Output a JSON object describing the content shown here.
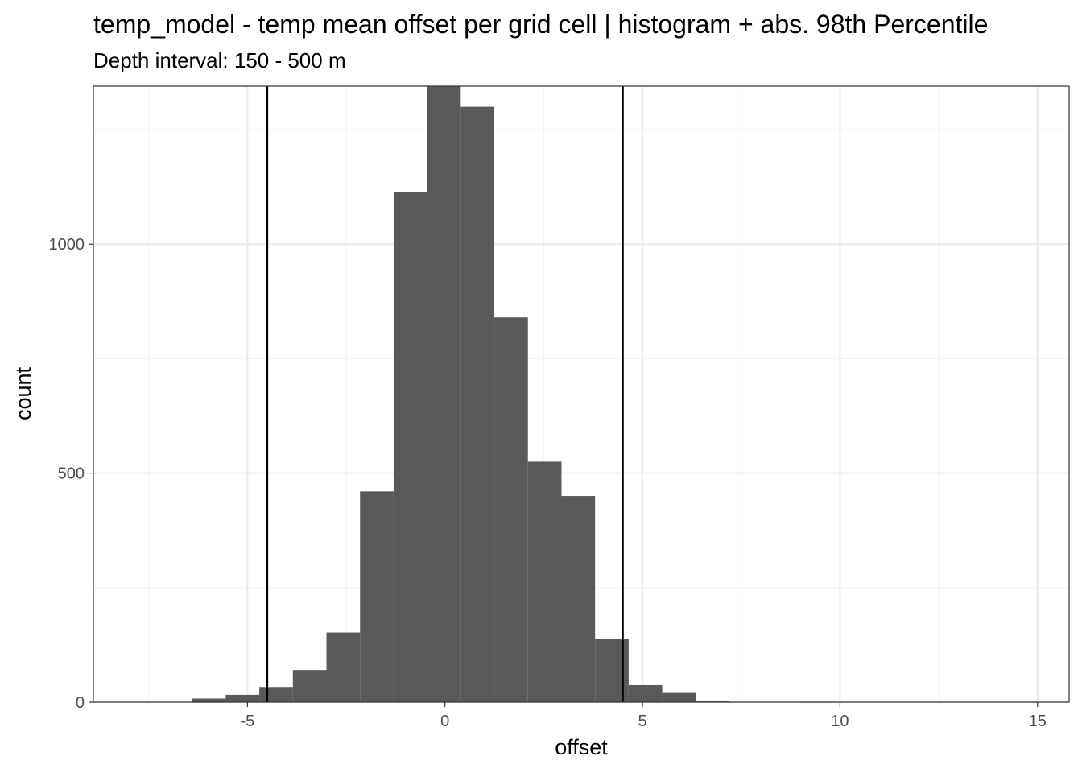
{
  "chart_data": {
    "type": "bar",
    "title": "temp_model  -  temp mean offset per grid cell | histogram + abs. 98th Percentile",
    "subtitle": "Depth interval: 150 - 500 m",
    "xlabel": "offset",
    "ylabel": "count",
    "xlim": [
      -8.9,
      15.8
    ],
    "ylim": [
      0,
      1345
    ],
    "x_ticks": [
      -5,
      0,
      5,
      10,
      15
    ],
    "x_tick_labels": [
      "-5",
      "0",
      "5",
      "10",
      "15"
    ],
    "y_ticks": [
      0,
      500,
      1000
    ],
    "y_tick_labels": [
      "0",
      "500",
      "1000"
    ],
    "grid": true,
    "bin_width": 0.85,
    "bins": [
      {
        "x0": -6.4,
        "x1": -5.55,
        "count": 8
      },
      {
        "x0": -5.55,
        "x1": -4.7,
        "count": 16
      },
      {
        "x0": -4.7,
        "x1": -3.85,
        "count": 33
      },
      {
        "x0": -3.85,
        "x1": -3.0,
        "count": 70
      },
      {
        "x0": -3.0,
        "x1": -2.15,
        "count": 152
      },
      {
        "x0": -2.15,
        "x1": -1.3,
        "count": 460
      },
      {
        "x0": -1.3,
        "x1": -0.45,
        "count": 1113
      },
      {
        "x0": -0.45,
        "x1": 0.4,
        "count": 1345
      },
      {
        "x0": 0.4,
        "x1": 1.25,
        "count": 1300
      },
      {
        "x0": 1.25,
        "x1": 2.1,
        "count": 840
      },
      {
        "x0": 2.1,
        "x1": 2.95,
        "count": 525
      },
      {
        "x0": 2.95,
        "x1": 3.8,
        "count": 450
      },
      {
        "x0": 3.8,
        "x1": 4.65,
        "count": 138
      },
      {
        "x0": 4.65,
        "x1": 5.5,
        "count": 37
      },
      {
        "x0": 5.5,
        "x1": 6.35,
        "count": 20
      },
      {
        "x0": 6.35,
        "x1": 7.2,
        "count": 2
      },
      {
        "x0": 9.0,
        "x1": 9.85,
        "count": 1
      }
    ],
    "vlines": [
      -4.5,
      4.5
    ],
    "bar_color": "#595959",
    "vline_color": "#000000",
    "grid_major_color": "#ebebeb",
    "grid_minor_color": "#f2f2f2"
  }
}
